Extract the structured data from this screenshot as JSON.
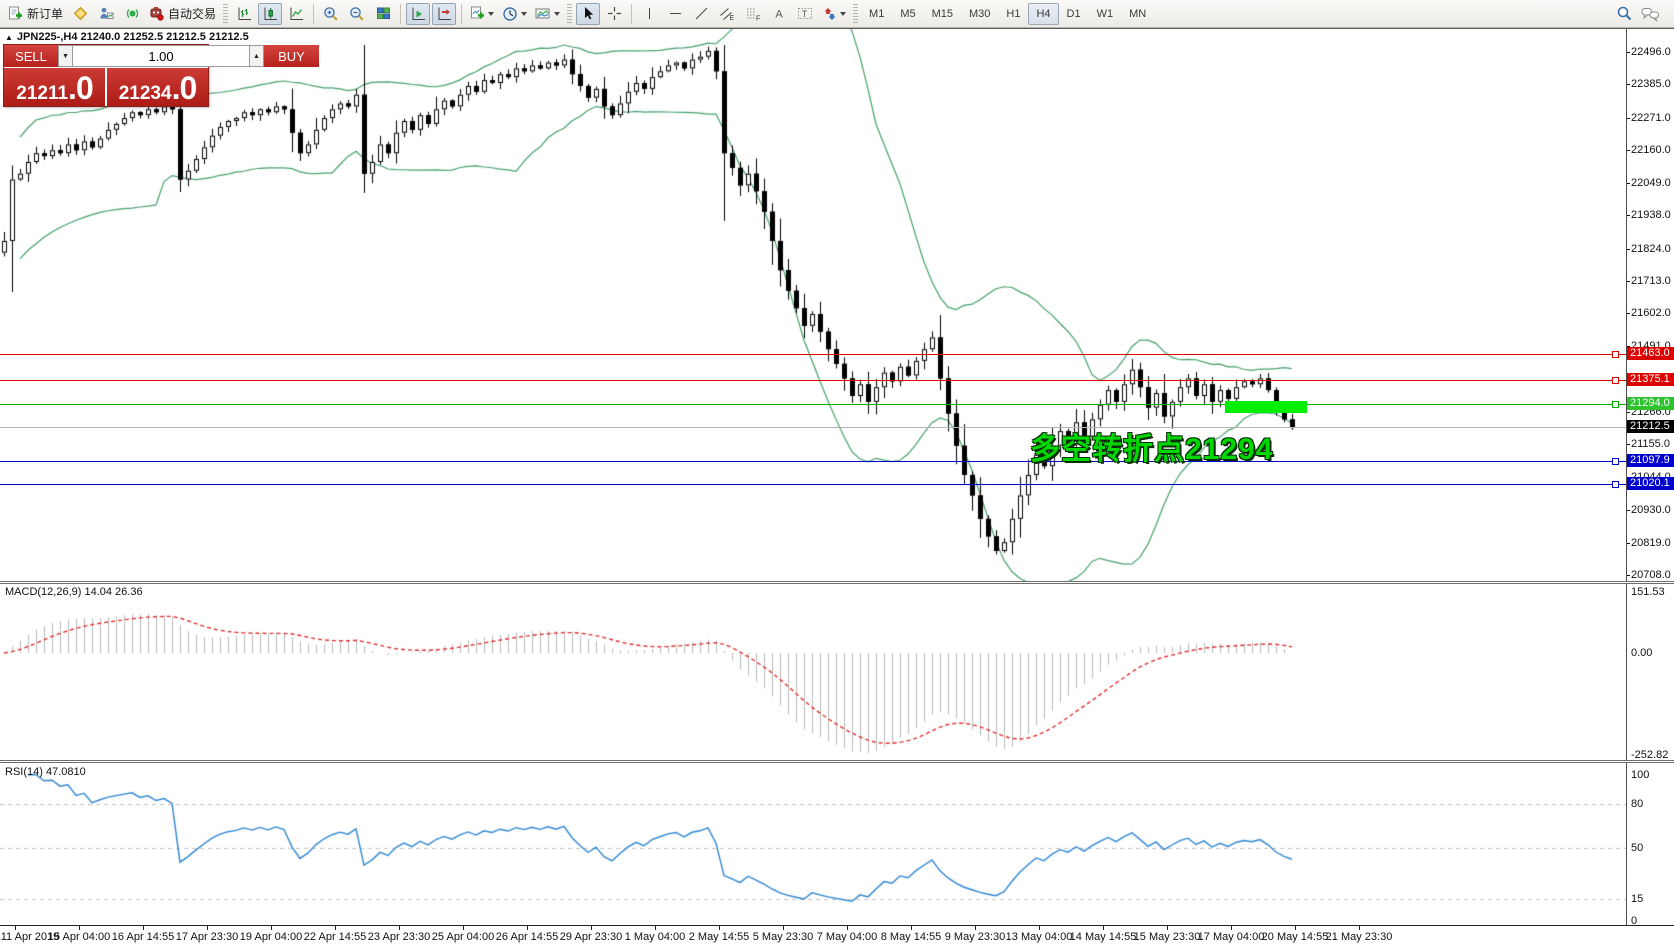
{
  "toolbar": {
    "new_order_label": "新订单",
    "autotrade_label": "自动交易",
    "timeframes": [
      "M1",
      "M5",
      "M15",
      "M30",
      "H1",
      "H4",
      "D1",
      "W1",
      "MN"
    ],
    "active_timeframe": "H4"
  },
  "symbol_bar": {
    "collapse_icon": "▲",
    "text": "JPN225-,H4  21240.0 21252.5 21212.5 21212.5"
  },
  "trade_panel": {
    "sell_label": "SELL",
    "buy_label": "BUY",
    "volume": "1.00",
    "sell_price_main": "21211",
    "sell_price_pips": ".0",
    "buy_price_main": "21234",
    "buy_price_pips": ".0"
  },
  "chart_data": {
    "type": "candlestick",
    "symbol": "JPN225-",
    "timeframe": "H4",
    "price_axis_ticks": [
      22496.0,
      22385.0,
      22271.0,
      22160.0,
      22049.0,
      21938.0,
      21824.0,
      21713.0,
      21602.0,
      21491.0,
      21266.0,
      21155.0,
      21044.0,
      20930.0,
      20819.0,
      20708.0
    ],
    "price_range": [
      20708.0,
      22496.0
    ],
    "bid": {
      "label": "21212.5",
      "price": 21212.5,
      "line_color": "#b4b4b4",
      "chip_bg": "#000000"
    },
    "levels": [
      {
        "label": "21463.0",
        "price": 21463.0,
        "line_color": "#e00000",
        "chip_bg": "#dd0000"
      },
      {
        "label": "21375.1",
        "price": 21375.1,
        "line_color": "#e00000",
        "chip_bg": "#dd0000"
      },
      {
        "label": "21294.0",
        "price": 21294.0,
        "line_color": "#00b200",
        "chip_bg": "#2ec22e"
      },
      {
        "label": "21097.9",
        "price": 21097.9,
        "line_color": "#0000cc",
        "chip_bg": "#0000cc"
      },
      {
        "label": "21020.1",
        "price": 21020.1,
        "line_color": "#0000cc",
        "chip_bg": "#0000cc"
      }
    ],
    "annotation": {
      "text": "多空转折点21294",
      "color": "#00d800"
    },
    "highlight_box": {
      "price": 21294.0,
      "color": "#00ef00"
    },
    "bollinger": {
      "period": 20,
      "deviation": 2,
      "color": "#44a06c"
    },
    "candles": {
      "first_open": 21810,
      "closes": [
        21850,
        22060,
        22080,
        22120,
        22150,
        22140,
        22160,
        22150,
        22180,
        22160,
        22190,
        22170,
        22200,
        22230,
        22250,
        22270,
        22290,
        22280,
        22300,
        22290,
        22310,
        22300,
        22060,
        22090,
        22130,
        22170,
        22210,
        22240,
        22260,
        22270,
        22290,
        22280,
        22300,
        22290,
        22310,
        22300,
        22220,
        22150,
        22180,
        22230,
        22270,
        22300,
        22320,
        22310,
        22350,
        22080,
        22120,
        22180,
        22150,
        22220,
        22260,
        22230,
        22280,
        22250,
        22300,
        22330,
        22310,
        22350,
        22380,
        22360,
        22400,
        22390,
        22420,
        22410,
        22440,
        22430,
        22450,
        22440,
        22460,
        22450,
        22470,
        22420,
        22380,
        22340,
        22370,
        22310,
        22280,
        22320,
        22360,
        22390,
        22370,
        22410,
        22430,
        22450,
        22460,
        22440,
        22470,
        22480,
        22500,
        22430,
        22150,
        22100,
        22040,
        22080,
        22020,
        21950,
        21850,
        21750,
        21680,
        21620,
        21560,
        21600,
        21540,
        21480,
        21430,
        21380,
        21320,
        21360,
        21300,
        21350,
        21400,
        21370,
        21420,
        21390,
        21440,
        21480,
        21520,
        21380,
        21260,
        21150,
        21050,
        20980,
        20900,
        20840,
        20790,
        20820,
        20900,
        20980,
        21050,
        21120,
        21080,
        21150,
        21200,
        21170,
        21230,
        21180,
        21240,
        21290,
        21340,
        21300,
        21360,
        21410,
        21350,
        21280,
        21330,
        21250,
        21300,
        21350,
        21380,
        21320,
        21360,
        21300,
        21340,
        21310,
        21350,
        21370,
        21360,
        21380,
        21340,
        21280,
        21240,
        21212.5
      ]
    },
    "time_axis": [
      "11 Apr 2019",
      "15 Apr 04:00",
      "16 Apr 14:55",
      "17 Apr 23:30",
      "19 Apr 04:00",
      "22 Apr 14:55",
      "23 Apr 23:30",
      "25 Apr 04:00",
      "26 Apr 14:55",
      "29 Apr 23:30",
      "1 May 04:00",
      "2 May 14:55",
      "5 May 23:30",
      "7 May 04:00",
      "8 May 14:55",
      "9 May 23:30",
      "13 May 04:00",
      "14 May 14:55",
      "15 May 23:30",
      "17 May 04:00",
      "20 May 14:55",
      "21 May 23:30"
    ]
  },
  "macd": {
    "label": "MACD(12,26,9) 14.04 26.36",
    "params": {
      "fast": 12,
      "slow": 26,
      "signal": 9
    },
    "current_main": 14.04,
    "current_signal": 26.36,
    "axis": [
      {
        "label": "151.53",
        "value": 151.53
      },
      {
        "label": "0.00",
        "value": 0
      },
      {
        "label": "-252.82",
        "value": -252.82
      }
    ],
    "hist_color": "#b9b9b9",
    "signal_color": "#e03030"
  },
  "rsi": {
    "label": "RSI(14) 47.0810",
    "period": 14,
    "current": 47.081,
    "axis": [
      {
        "label": "100",
        "value": 100
      },
      {
        "label": "80",
        "value": 80
      },
      {
        "label": "50",
        "value": 50
      },
      {
        "label": "15",
        "value": 15
      },
      {
        "label": "0",
        "value": 0
      }
    ],
    "level_lines": [
      80,
      50,
      15
    ],
    "line_color": "#2f86d2",
    "grid_color": "#bfbfbf"
  }
}
